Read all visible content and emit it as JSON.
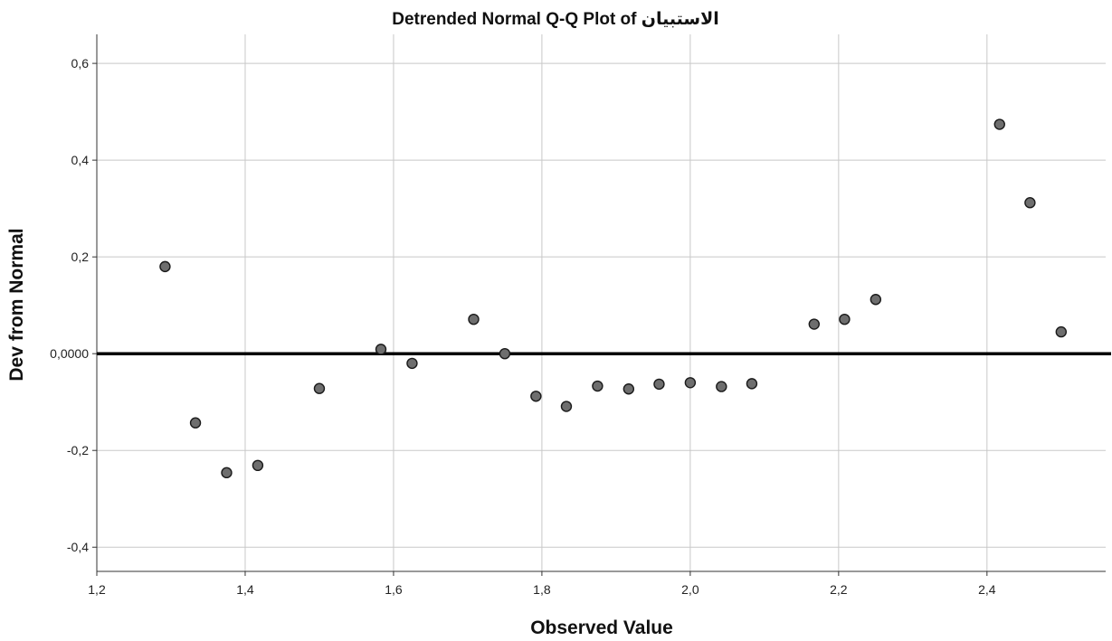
{
  "chart_data": {
    "type": "scatter",
    "title": "Detrended Normal Q-Q Plot of الاستبيان",
    "xlabel": "Observed Value",
    "ylabel": "Dev from Normal",
    "xlim": [
      1.2,
      2.56
    ],
    "ylim": [
      -0.45,
      0.66
    ],
    "x_ticks": [
      1.2,
      1.4,
      1.6,
      1.8,
      2.0,
      2.2,
      2.4
    ],
    "x_tick_labels": [
      "1,2",
      "1,4",
      "1,6",
      "1,8",
      "2,0",
      "2,2",
      "2,4"
    ],
    "y_ticks": [
      -0.4,
      -0.2,
      0.0,
      0.2,
      0.4,
      0.6
    ],
    "y_tick_labels": [
      "-0,4",
      "-0,2",
      "0,0000",
      "0,2",
      "0,4",
      "0,6"
    ],
    "grid": true,
    "reference_line": 0.0,
    "colors": {
      "point_fill": "#6e6e6e",
      "point_stroke": "#1a1a1a",
      "reference_line": "#000000",
      "grid": "#c8c8c8"
    },
    "points": [
      {
        "x": 1.292,
        "y": 0.18
      },
      {
        "x": 1.333,
        "y": -0.143
      },
      {
        "x": 1.375,
        "y": -0.246
      },
      {
        "x": 1.417,
        "y": -0.231
      },
      {
        "x": 1.5,
        "y": -0.072
      },
      {
        "x": 1.583,
        "y": 0.009
      },
      {
        "x": 1.625,
        "y": -0.02
      },
      {
        "x": 1.708,
        "y": 0.071
      },
      {
        "x": 1.75,
        "y": 0.0
      },
      {
        "x": 1.792,
        "y": -0.088
      },
      {
        "x": 1.833,
        "y": -0.109
      },
      {
        "x": 1.875,
        "y": -0.067
      },
      {
        "x": 1.917,
        "y": -0.073
      },
      {
        "x": 1.958,
        "y": -0.063
      },
      {
        "x": 2.0,
        "y": -0.06
      },
      {
        "x": 2.042,
        "y": -0.068
      },
      {
        "x": 2.083,
        "y": -0.062
      },
      {
        "x": 2.167,
        "y": 0.061
      },
      {
        "x": 2.208,
        "y": 0.071
      },
      {
        "x": 2.25,
        "y": 0.112
      },
      {
        "x": 2.417,
        "y": 0.474
      },
      {
        "x": 2.458,
        "y": 0.312
      },
      {
        "x": 2.5,
        "y": 0.045
      }
    ]
  }
}
